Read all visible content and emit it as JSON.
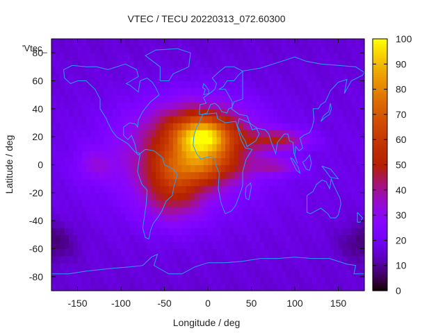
{
  "chart_data": {
    "type": "heatmap",
    "title": "VTEC / TECU 20220313_072.60300",
    "xlabel": "Longitude / deg",
    "ylabel": "Latitude / deg",
    "key_label": "'Vtec_",
    "xlim": [
      -180,
      180
    ],
    "ylim": [
      -90,
      90
    ],
    "x_ticks": [
      -150,
      -100,
      -50,
      0,
      50,
      100,
      150
    ],
    "y_ticks": [
      -80,
      -60,
      -40,
      -20,
      0,
      20,
      40,
      60,
      80
    ],
    "colorbar": {
      "min": 0,
      "max": 100,
      "ticks": [
        0,
        10,
        20,
        30,
        40,
        50,
        60,
        70,
        80,
        90,
        100
      ],
      "palette": "black-purple-red-orange-yellow"
    },
    "background_tecu": 16,
    "features": [
      {
        "name": "equatorial anomaly core",
        "lon": -5,
        "lat": 20,
        "sigma_lon": 22,
        "sigma_lat": 9,
        "tecu": 40
      },
      {
        "name": "southern crest",
        "lon": -10,
        "lat": 0,
        "sigma_lon": 35,
        "sigma_lat": 10,
        "tecu": 30
      },
      {
        "name": "atlantic bulge",
        "lon": -40,
        "lat": -20,
        "sigma_lon": 25,
        "sigma_lat": 15,
        "tecu": 22
      },
      {
        "name": "northern plateau",
        "lon": -10,
        "lat": 25,
        "sigma_lon": 40,
        "sigma_lat": 15,
        "tecu": 28
      },
      {
        "name": "broad daytime region",
        "lon": -30,
        "lat": 5,
        "sigma_lon": 60,
        "sigma_lat": 25,
        "tecu": 20
      },
      {
        "name": "eastern extension",
        "lon": 80,
        "lat": 18,
        "sigma_lon": 25,
        "sigma_lat": 5,
        "tecu": 25
      },
      {
        "name": "equatorial tail",
        "lon": 80,
        "lat": -1,
        "sigma_lon": 20,
        "sigma_lat": 4,
        "tecu": 15
      },
      {
        "name": "western tongue",
        "lon": -130,
        "lat": 0,
        "sigma_lon": 15,
        "sigma_lat": 8,
        "tecu": 10
      },
      {
        "name": "southern pacific low",
        "lon": -180,
        "lat": -55,
        "sigma_lon": 20,
        "sigma_lat": 10,
        "tecu": -10
      }
    ],
    "coastlines": [
      {
        "name": "North America",
        "points": [
          [
            -166,
            68
          ],
          [
            -156,
            71
          ],
          [
            -140,
            70
          ],
          [
            -128,
            70
          ],
          [
            -115,
            68
          ],
          [
            -95,
            72
          ],
          [
            -82,
            68
          ],
          [
            -80,
            63
          ],
          [
            -94,
            58
          ],
          [
            -90,
            57
          ],
          [
            -80,
            52
          ],
          [
            -78,
            60
          ],
          [
            -70,
            62
          ],
          [
            -64,
            59
          ],
          [
            -60,
            55
          ],
          [
            -56,
            50
          ],
          [
            -66,
            45
          ],
          [
            -70,
            42
          ],
          [
            -75,
            38
          ],
          [
            -80,
            32
          ],
          [
            -81,
            27
          ],
          [
            -83,
            29
          ],
          [
            -90,
            30
          ],
          [
            -97,
            27
          ],
          [
            -97,
            21
          ],
          [
            -92,
            18
          ],
          [
            -88,
            21
          ],
          [
            -84,
            15
          ],
          [
            -82,
            9
          ],
          [
            -78,
            8
          ],
          [
            -80,
            7
          ],
          [
            -85,
            10
          ],
          [
            -92,
            15
          ],
          [
            -105,
            20
          ],
          [
            -110,
            24
          ],
          [
            -115,
            30
          ],
          [
            -117,
            33
          ],
          [
            -124,
            40
          ],
          [
            -124,
            47
          ],
          [
            -130,
            54
          ],
          [
            -140,
            60
          ],
          [
            -150,
            60
          ],
          [
            -158,
            58
          ],
          [
            -165,
            62
          ],
          [
            -166,
            68
          ]
        ]
      },
      {
        "name": "Greenland",
        "points": [
          [
            -55,
            60
          ],
          [
            -45,
            60
          ],
          [
            -40,
            65
          ],
          [
            -22,
            70
          ],
          [
            -20,
            80
          ],
          [
            -35,
            83
          ],
          [
            -60,
            82
          ],
          [
            -72,
            78
          ],
          [
            -55,
            70
          ],
          [
            -55,
            60
          ]
        ]
      },
      {
        "name": "South America",
        "points": [
          [
            -78,
            8
          ],
          [
            -72,
            11
          ],
          [
            -62,
            10
          ],
          [
            -52,
            5
          ],
          [
            -50,
            0
          ],
          [
            -40,
            -3
          ],
          [
            -35,
            -7
          ],
          [
            -39,
            -15
          ],
          [
            -41,
            -22
          ],
          [
            -48,
            -26
          ],
          [
            -53,
            -33
          ],
          [
            -58,
            -38
          ],
          [
            -63,
            -42
          ],
          [
            -66,
            -47
          ],
          [
            -68,
            -53
          ],
          [
            -72,
            -52
          ],
          [
            -75,
            -45
          ],
          [
            -73,
            -37
          ],
          [
            -71,
            -28
          ],
          [
            -70,
            -18
          ],
          [
            -76,
            -14
          ],
          [
            -81,
            -5
          ],
          [
            -80,
            0
          ],
          [
            -78,
            8
          ]
        ]
      },
      {
        "name": "Europe",
        "points": [
          [
            -10,
            36
          ],
          [
            -9,
            43
          ],
          [
            -2,
            44
          ],
          [
            -5,
            48
          ],
          [
            2,
            51
          ],
          [
            8,
            54
          ],
          [
            10,
            58
          ],
          [
            5,
            62
          ],
          [
            12,
            66
          ],
          [
            20,
            70
          ],
          [
            30,
            70
          ],
          [
            40,
            67
          ],
          [
            35,
            64
          ],
          [
            30,
            60
          ],
          [
            22,
            60
          ],
          [
            18,
            56
          ],
          [
            13,
            54
          ],
          [
            20,
            54
          ],
          [
            28,
            45
          ],
          [
            28,
            41
          ],
          [
            24,
            40
          ],
          [
            22,
            37
          ],
          [
            16,
            38
          ],
          [
            12,
            42
          ],
          [
            8,
            44
          ],
          [
            3,
            43
          ],
          [
            -1,
            37
          ],
          [
            -6,
            36
          ],
          [
            -10,
            36
          ]
        ]
      },
      {
        "name": "Africa",
        "points": [
          [
            -6,
            36
          ],
          [
            10,
            37
          ],
          [
            11,
            33
          ],
          [
            20,
            30
          ],
          [
            32,
            31
          ],
          [
            34,
            27
          ],
          [
            38,
            18
          ],
          [
            43,
            12
          ],
          [
            51,
            11
          ],
          [
            44,
            4
          ],
          [
            40,
            -5
          ],
          [
            40,
            -15
          ],
          [
            35,
            -24
          ],
          [
            32,
            -29
          ],
          [
            27,
            -33
          ],
          [
            20,
            -35
          ],
          [
            18,
            -32
          ],
          [
            15,
            -27
          ],
          [
            12,
            -17
          ],
          [
            13,
            -6
          ],
          [
            9,
            0
          ],
          [
            8,
            4
          ],
          [
            4,
            6
          ],
          [
            -4,
            5
          ],
          [
            -8,
            4
          ],
          [
            -13,
            8
          ],
          [
            -17,
            14
          ],
          [
            -16,
            21
          ],
          [
            -13,
            27
          ],
          [
            -10,
            30
          ],
          [
            -6,
            36
          ]
        ]
      },
      {
        "name": "Arabia",
        "points": [
          [
            34,
            28
          ],
          [
            36,
            33
          ],
          [
            48,
            30
          ],
          [
            51,
            25
          ],
          [
            56,
            26
          ],
          [
            59,
            22
          ],
          [
            55,
            17
          ],
          [
            45,
            13
          ],
          [
            43,
            17
          ],
          [
            39,
            21
          ],
          [
            34,
            28
          ]
        ]
      },
      {
        "name": "Asia",
        "points": [
          [
            36,
            36
          ],
          [
            27,
            40
          ],
          [
            30,
            45
          ],
          [
            40,
            47
          ],
          [
            40,
            67
          ],
          [
            60,
            69
          ],
          [
            80,
            73
          ],
          [
            100,
            77
          ],
          [
            113,
            74
          ],
          [
            130,
            72
          ],
          [
            150,
            71
          ],
          [
            170,
            70
          ],
          [
            180,
            66
          ],
          [
            178,
            64
          ],
          [
            165,
            60
          ],
          [
            157,
            51
          ],
          [
            160,
            61
          ],
          [
            150,
            59
          ],
          [
            141,
            53
          ],
          [
            135,
            45
          ],
          [
            130,
            43
          ],
          [
            127,
            40
          ],
          [
            121,
            40
          ],
          [
            122,
            32
          ],
          [
            120,
            27
          ],
          [
            117,
            23
          ],
          [
            110,
            21
          ],
          [
            106,
            19
          ],
          [
            109,
            12
          ],
          [
            105,
            10
          ],
          [
            101,
            13
          ],
          [
            100,
            7
          ],
          [
            103,
            1
          ],
          [
            99,
            8
          ],
          [
            98,
            16
          ],
          [
            94,
            17
          ],
          [
            92,
            22
          ],
          [
            88,
            22
          ],
          [
            80,
            16
          ],
          [
            78,
            8
          ],
          [
            73,
            16
          ],
          [
            70,
            22
          ],
          [
            66,
            25
          ],
          [
            57,
            26
          ],
          [
            52,
            28
          ],
          [
            48,
            30
          ],
          [
            45,
            35
          ],
          [
            36,
            36
          ]
        ]
      },
      {
        "name": "Australia",
        "points": [
          [
            114,
            -22
          ],
          [
            114,
            -34
          ],
          [
            118,
            -35
          ],
          [
            124,
            -33
          ],
          [
            130,
            -31
          ],
          [
            138,
            -35
          ],
          [
            141,
            -38
          ],
          [
            147,
            -38
          ],
          [
            150,
            -36
          ],
          [
            153,
            -28
          ],
          [
            152,
            -24
          ],
          [
            145,
            -15
          ],
          [
            142,
            -10
          ],
          [
            140,
            -17
          ],
          [
            136,
            -12
          ],
          [
            131,
            -11
          ],
          [
            125,
            -14
          ],
          [
            121,
            -19
          ],
          [
            114,
            -22
          ]
        ]
      },
      {
        "name": "Borneo",
        "points": [
          [
            109,
            2
          ],
          [
            113,
            -3
          ],
          [
            117,
            -4
          ],
          [
            119,
            1
          ],
          [
            117,
            7
          ],
          [
            112,
            3
          ],
          [
            109,
            2
          ]
        ]
      },
      {
        "name": "Sumatra",
        "points": [
          [
            95,
            5
          ],
          [
            98,
            4
          ],
          [
            104,
            -2
          ],
          [
            106,
            -6
          ],
          [
            102,
            -4
          ],
          [
            95,
            5
          ]
        ]
      },
      {
        "name": "New Guinea",
        "points": [
          [
            131,
            -1
          ],
          [
            141,
            -3
          ],
          [
            150,
            -10
          ],
          [
            141,
            -9
          ],
          [
            135,
            -4
          ],
          [
            131,
            -1
          ]
        ]
      },
      {
        "name": "Madagascar",
        "points": [
          [
            44,
            -16
          ],
          [
            49,
            -13
          ],
          [
            50,
            -16
          ],
          [
            47,
            -25
          ],
          [
            44,
            -24
          ],
          [
            43,
            -21
          ],
          [
            44,
            -16
          ]
        ]
      },
      {
        "name": "Japan",
        "points": [
          [
            130,
            31
          ],
          [
            135,
            34
          ],
          [
            140,
            36
          ],
          [
            142,
            40
          ],
          [
            141,
            44
          ],
          [
            139,
            38
          ],
          [
            133,
            35
          ],
          [
            130,
            31
          ]
        ]
      },
      {
        "name": "United Kingdom",
        "points": [
          [
            -5,
            50
          ],
          [
            1,
            51
          ],
          [
            1,
            53
          ],
          [
            -2,
            56
          ],
          [
            -5,
            58
          ],
          [
            -6,
            55
          ],
          [
            -3,
            54
          ],
          [
            -5,
            50
          ]
        ]
      },
      {
        "name": "New Zealand",
        "points": [
          [
            172,
            -34
          ],
          [
            178,
            -38
          ],
          [
            175,
            -41
          ],
          [
            172,
            -41
          ],
          [
            172,
            -34
          ]
        ]
      },
      {
        "name": "Antarctica",
        "points": [
          [
            -180,
            -84
          ],
          [
            -180,
            -78
          ],
          [
            -160,
            -78
          ],
          [
            -140,
            -76
          ],
          [
            -110,
            -74
          ],
          [
            -90,
            -73
          ],
          [
            -75,
            -72
          ],
          [
            -65,
            -66
          ],
          [
            -58,
            -64
          ],
          [
            -62,
            -72
          ],
          [
            -45,
            -78
          ],
          [
            -30,
            -78
          ],
          [
            -15,
            -73
          ],
          [
            0,
            -70
          ],
          [
            20,
            -70
          ],
          [
            40,
            -69
          ],
          [
            60,
            -67
          ],
          [
            80,
            -67
          ],
          [
            100,
            -66
          ],
          [
            120,
            -67
          ],
          [
            140,
            -67
          ],
          [
            160,
            -71
          ],
          [
            170,
            -72
          ],
          [
            168,
            -78
          ],
          [
            180,
            -78
          ]
        ]
      }
    ]
  }
}
